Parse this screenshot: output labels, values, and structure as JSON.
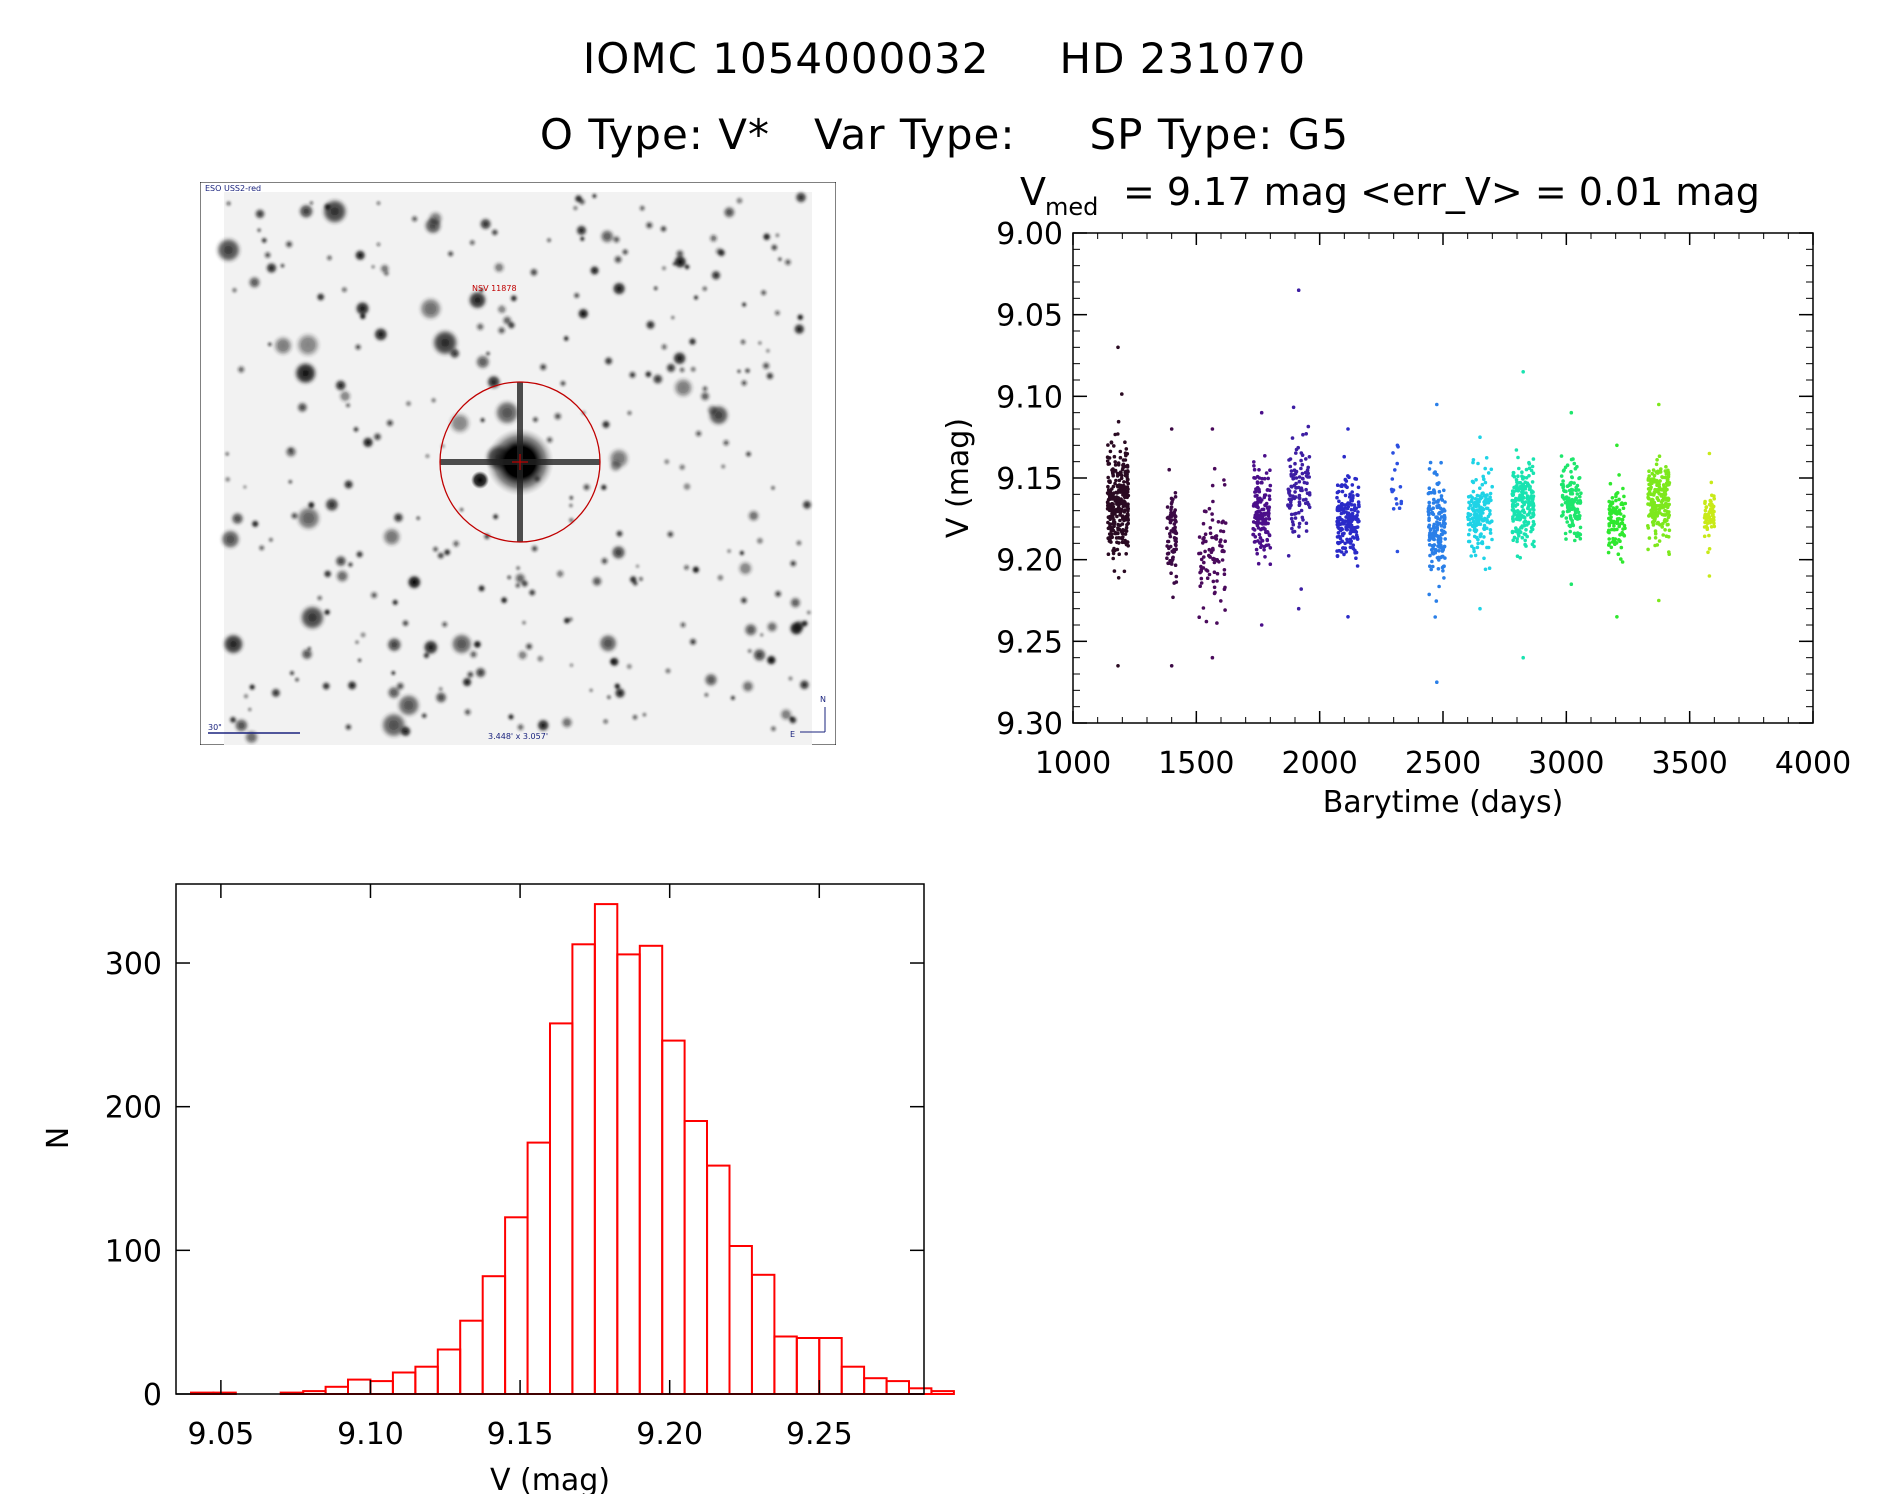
{
  "header": {
    "id_main": "IOMC 1054000032",
    "id_alt": "HD 231070",
    "o_type": "O Type: V*",
    "var_type": "Var Type:",
    "sp_type": "SP Type: G5"
  },
  "image_panel": {
    "survey_label": "ESO USS2-red",
    "target_label": "NSV 11878",
    "scale_label": "30\"",
    "size_label": "3.448' x 3.057'",
    "north_label": "N",
    "east_label": "E"
  },
  "chart_data": [
    {
      "type": "scatter",
      "title_prefix": "V",
      "title_sub": "med",
      "title_rest": "= 9.17 mag <err_V> = 0.01 mag",
      "xlabel": "Barytime (days)",
      "ylabel": "V (mag)",
      "xlim": [
        1000,
        4000
      ],
      "ylim": [
        9.3,
        9.0
      ],
      "y_inverted": true,
      "xticks": [
        "1000",
        "1500",
        "2000",
        "2500",
        "3000",
        "3500",
        "4000"
      ],
      "yticks": [
        "9.00",
        "9.05",
        "9.10",
        "9.15",
        "9.20",
        "9.25",
        "9.30"
      ],
      "color_scale": "time-coloured (dark purple to yellow-green)",
      "groups": [
        {
          "x0": 1140,
          "x1": 1225,
          "center": 9.165,
          "spread": 0.03,
          "min": 9.07,
          "max": 9.265,
          "color": "#2a0a22",
          "n": 300
        },
        {
          "x0": 1380,
          "x1": 1420,
          "center": 9.185,
          "spread": 0.025,
          "min": 9.12,
          "max": 9.265,
          "color": "#3c0a45",
          "n": 80
        },
        {
          "x0": 1510,
          "x1": 1620,
          "center": 9.2,
          "spread": 0.03,
          "min": 9.12,
          "max": 9.26,
          "color": "#4a0a5c",
          "n": 90
        },
        {
          "x0": 1730,
          "x1": 1800,
          "center": 9.17,
          "spread": 0.025,
          "min": 9.11,
          "max": 9.24,
          "color": "#4b0f8a",
          "n": 150
        },
        {
          "x0": 1870,
          "x1": 1960,
          "center": 9.16,
          "spread": 0.03,
          "min": 9.035,
          "max": 9.23,
          "color": "#3d1ea3",
          "n": 110
        },
        {
          "x0": 2070,
          "x1": 2160,
          "center": 9.175,
          "spread": 0.022,
          "min": 9.12,
          "max": 9.235,
          "color": "#2a2ac8",
          "n": 190
        },
        {
          "x0": 2290,
          "x1": 2340,
          "center": 9.155,
          "spread": 0.02,
          "min": 9.13,
          "max": 9.195,
          "color": "#2b4fe0",
          "n": 15
        },
        {
          "x0": 2440,
          "x1": 2510,
          "center": 9.18,
          "spread": 0.03,
          "min": 9.105,
          "max": 9.275,
          "color": "#2a7fe8",
          "n": 170
        },
        {
          "x0": 2600,
          "x1": 2700,
          "center": 9.17,
          "spread": 0.022,
          "min": 9.125,
          "max": 9.23,
          "color": "#1fd3e6",
          "n": 170
        },
        {
          "x0": 2780,
          "x1": 2870,
          "center": 9.165,
          "spread": 0.022,
          "min": 9.085,
          "max": 9.26,
          "color": "#19e3b0",
          "n": 220
        },
        {
          "x0": 2980,
          "x1": 3060,
          "center": 9.165,
          "spread": 0.02,
          "min": 9.11,
          "max": 9.215,
          "color": "#1ee66c",
          "n": 130
        },
        {
          "x0": 3170,
          "x1": 3240,
          "center": 9.175,
          "spread": 0.02,
          "min": 9.13,
          "max": 9.235,
          "color": "#2fe82f",
          "n": 100
        },
        {
          "x0": 3330,
          "x1": 3420,
          "center": 9.165,
          "spread": 0.022,
          "min": 9.105,
          "max": 9.225,
          "color": "#7de81c",
          "n": 210
        },
        {
          "x0": 3560,
          "x1": 3600,
          "center": 9.175,
          "spread": 0.015,
          "min": 9.135,
          "max": 9.21,
          "color": "#c8ea18",
          "n": 60
        }
      ]
    },
    {
      "type": "bar",
      "subtype": "histogram",
      "xlabel": "V (mag)",
      "ylabel": "N",
      "xlim": [
        9.035,
        9.285
      ],
      "ylim": [
        0,
        355
      ],
      "xticks": [
        "9.05",
        "9.10",
        "9.15",
        "9.20",
        "9.25"
      ],
      "yticks": [
        "0",
        "100",
        "200",
        "300"
      ],
      "bin_width": 0.0075,
      "bin_start": 9.04,
      "values": [
        1,
        1,
        0,
        0,
        1,
        2,
        5,
        10,
        9,
        15,
        19,
        31,
        51,
        82,
        123,
        175,
        258,
        313,
        341,
        306,
        312,
        246,
        190,
        159,
        103,
        83,
        40,
        39,
        39,
        19,
        11,
        9,
        4,
        2,
        0
      ],
      "color": "#ff0000"
    }
  ]
}
